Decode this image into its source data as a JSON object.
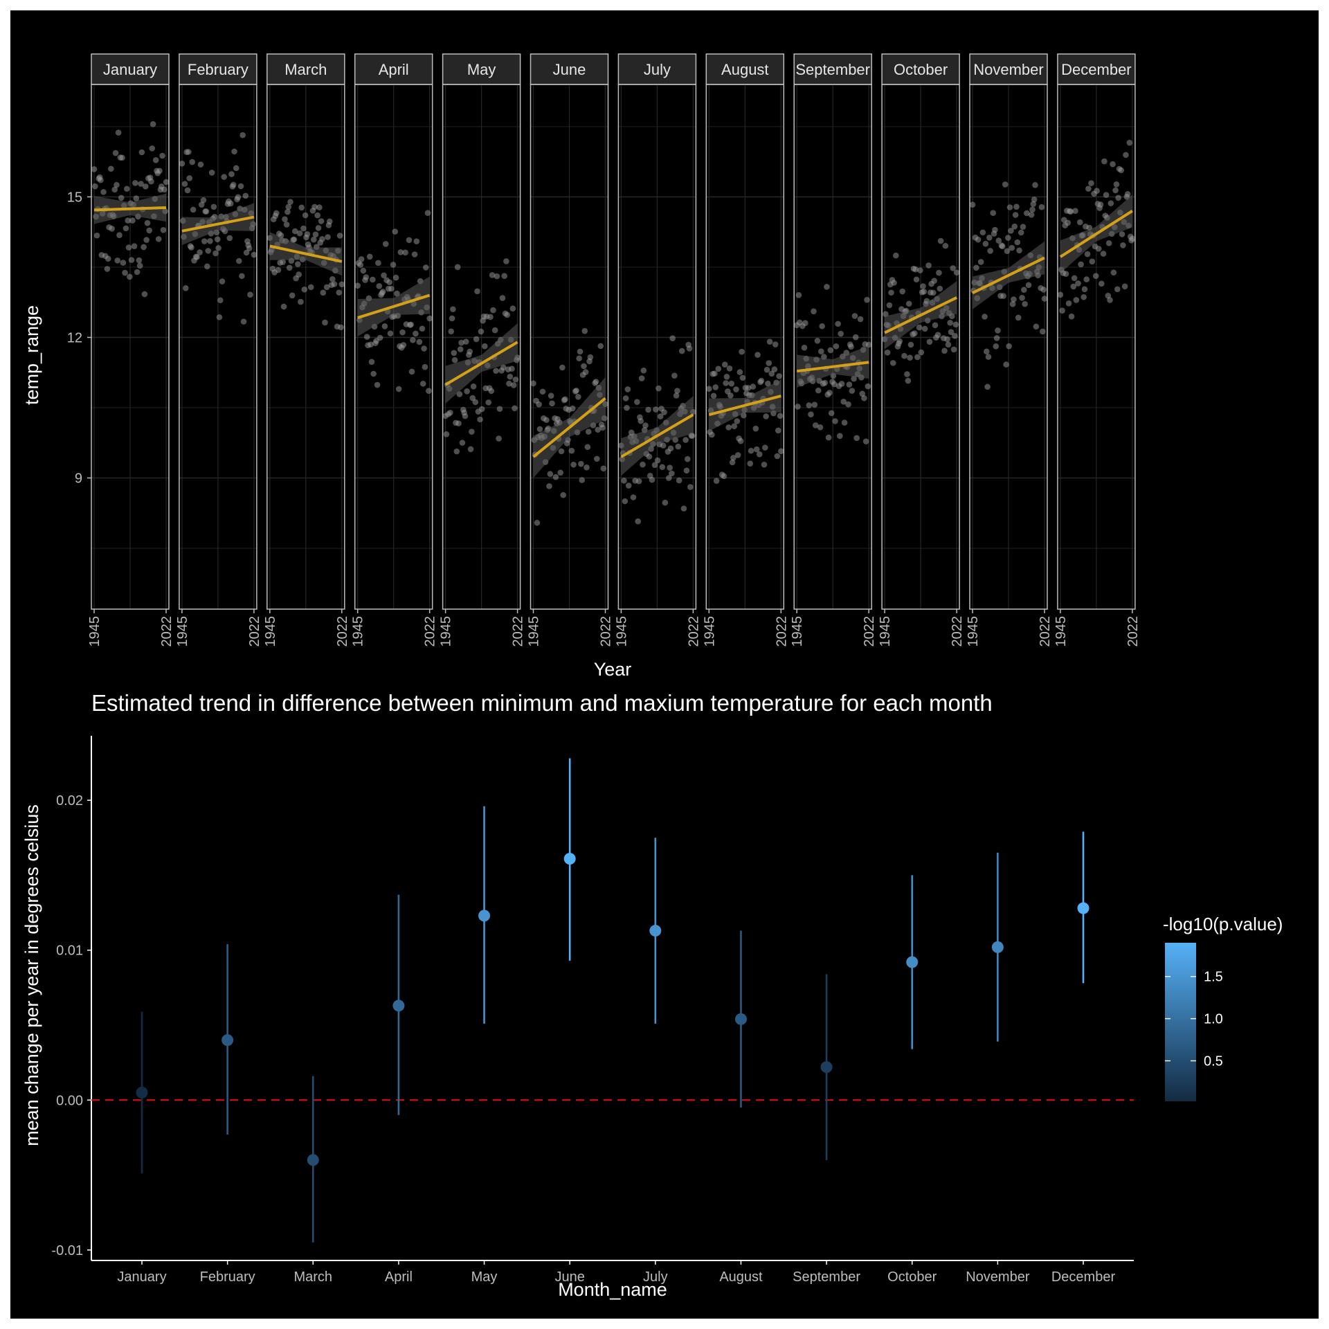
{
  "colors": {
    "background": "#000000",
    "panel_border": "#bdbdbd",
    "strip_fill": "#262626",
    "grid": "#262626",
    "points": "#9e9e9e",
    "trend_line": "#d4a017",
    "ribbon": "#595959",
    "zero_line": "#cc1111",
    "low_color": "#132B43",
    "high_color": "#56B1F7"
  },
  "chart_data": [
    {
      "type": "scatter",
      "facet_by": "month",
      "xlabel": "Year",
      "ylabel": "temp_range",
      "x_ticks": [
        "1945",
        "2022"
      ],
      "xlim": [
        1945,
        2022
      ],
      "y_ticks": [
        9,
        12,
        15
      ],
      "ylim": [
        6.2,
        17.4
      ],
      "panels": [
        {
          "label": "January",
          "trend": {
            "start": 14.72,
            "end": 14.77
          },
          "spread": 1.1,
          "band": 0.3
        },
        {
          "label": "February",
          "trend": {
            "start": 14.27,
            "end": 14.57
          },
          "spread": 1.3,
          "band": 0.3
        },
        {
          "label": "March",
          "trend": {
            "start": 13.95,
            "end": 13.62
          },
          "spread": 1.0,
          "band": 0.3
        },
        {
          "label": "April",
          "trend": {
            "start": 12.42,
            "end": 12.9
          },
          "spread": 1.4,
          "band": 0.4
        },
        {
          "label": "May",
          "trend": {
            "start": 10.99,
            "end": 11.9
          },
          "spread": 1.5,
          "band": 0.4
        },
        {
          "label": "June",
          "trend": {
            "start": 9.45,
            "end": 10.7
          },
          "spread": 1.4,
          "band": 0.45
        },
        {
          "label": "July",
          "trend": {
            "start": 9.45,
            "end": 10.35
          },
          "spread": 1.3,
          "band": 0.4
        },
        {
          "label": "August",
          "trend": {
            "start": 10.35,
            "end": 10.75
          },
          "spread": 1.1,
          "band": 0.35
        },
        {
          "label": "September",
          "trend": {
            "start": 11.28,
            "end": 11.47
          },
          "spread": 1.2,
          "band": 0.35
        },
        {
          "label": "October",
          "trend": {
            "start": 12.1,
            "end": 12.85
          },
          "spread": 1.2,
          "band": 0.35
        },
        {
          "label": "November",
          "trend": {
            "start": 12.95,
            "end": 13.7
          },
          "spread": 1.3,
          "band": 0.35
        },
        {
          "label": "December",
          "trend": {
            "start": 13.72,
            "end": 14.7
          },
          "spread": 1.1,
          "band": 0.35
        }
      ]
    },
    {
      "type": "scatter",
      "title": "Estimated trend in difference between minimum and maxium temperature for each month",
      "xlabel": "Month_name",
      "ylabel": "mean change per year in degrees celsius",
      "categories": [
        "January",
        "February",
        "March",
        "April",
        "May",
        "June",
        "July",
        "August",
        "September",
        "October",
        "November",
        "December"
      ],
      "estimate": [
        0.0005,
        0.004,
        -0.004,
        0.0063,
        0.0123,
        0.0161,
        0.0113,
        0.0054,
        0.0022,
        0.0092,
        0.0102,
        0.0128
      ],
      "conf_low": [
        -0.0049,
        -0.0023,
        -0.0095,
        -0.001,
        0.0051,
        0.0093,
        0.0051,
        -0.0005,
        -0.004,
        0.0034,
        0.0039,
        0.0078
      ],
      "conf_high": [
        0.0059,
        0.0104,
        0.0016,
        0.0137,
        0.0196,
        0.0228,
        0.0175,
        0.0113,
        0.0084,
        0.015,
        0.0165,
        0.0179
      ],
      "neg_log10_p": [
        0.05,
        0.7,
        0.5,
        0.9,
        1.5,
        1.9,
        1.5,
        0.7,
        0.3,
        1.4,
        1.3,
        1.9
      ],
      "y_ticks": [
        -0.01,
        0.0,
        0.01,
        0.02
      ],
      "y_tick_labels": [
        "-0.01",
        "0.00",
        "0.01",
        "0.02"
      ],
      "ylim": [
        -0.0107,
        0.0243
      ],
      "reference_line": 0,
      "legend": {
        "title": "-log10(p.value)",
        "position": "right",
        "ticks": [
          0.5,
          1.0,
          1.5
        ],
        "tick_labels": [
          "0.5",
          "1.0",
          "1.5"
        ],
        "range": [
          0.02,
          1.9
        ]
      }
    }
  ]
}
